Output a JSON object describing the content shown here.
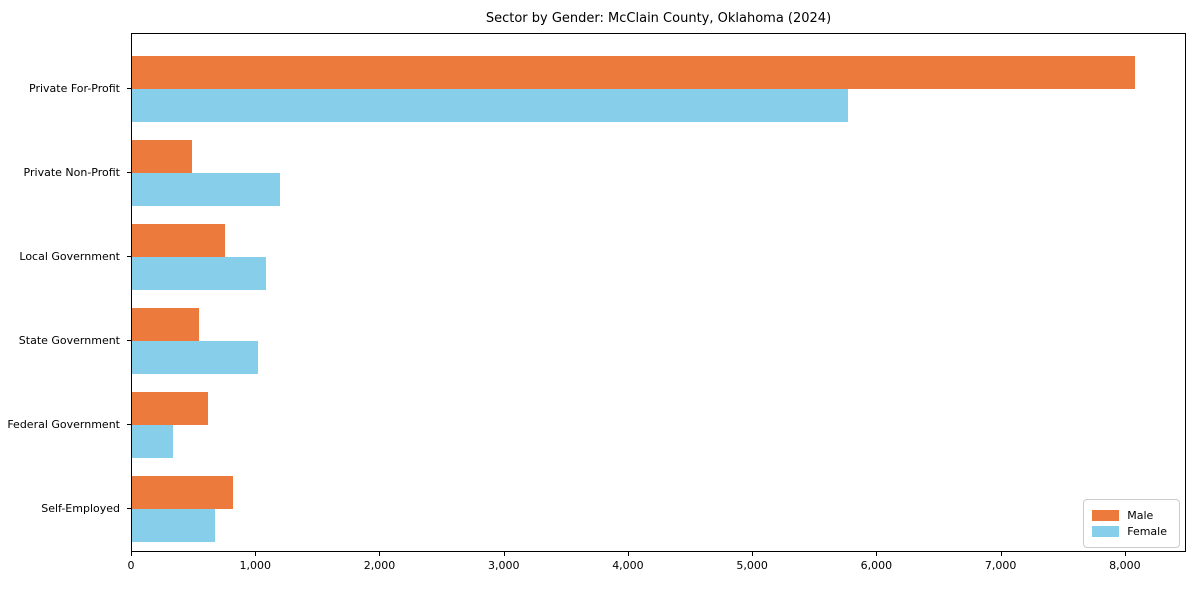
{
  "figure": {
    "title": "Sector by Gender: McClain County, Oklahoma (2024)"
  },
  "chart_data": {
    "type": "bar",
    "orientation": "horizontal",
    "title": "Sector by Gender: McClain County, Oklahoma (2024)",
    "categories": [
      "Private For-Profit",
      "Private Non-Profit",
      "Local Government",
      "State Government",
      "Federal Government",
      "Self-Employed"
    ],
    "series": [
      {
        "name": "Male",
        "color": "#EC7A3C",
        "values": [
          8088,
          485,
          746,
          537,
          609,
          813
        ]
      },
      {
        "name": "Female",
        "color": "#87CEEB",
        "values": [
          5778,
          1191,
          1077,
          1020,
          332,
          668
        ]
      }
    ],
    "xlabel": "",
    "ylabel": "",
    "xlim": [
      0,
      8492
    ],
    "xticks": {
      "values": [
        0,
        1000,
        2000,
        3000,
        4000,
        5000,
        6000,
        7000,
        8000
      ],
      "labels": [
        "0",
        "1,000",
        "2,000",
        "3,000",
        "4,000",
        "5,000",
        "6,000",
        "7,000",
        "8,000"
      ]
    },
    "grid": false,
    "legend_position": "lower right"
  },
  "colors": {
    "male": "#EC7A3C",
    "female": "#87CEEB",
    "spine": "#000000",
    "legend_border": "#CCCCCC",
    "background": "#FFFFFF"
  }
}
